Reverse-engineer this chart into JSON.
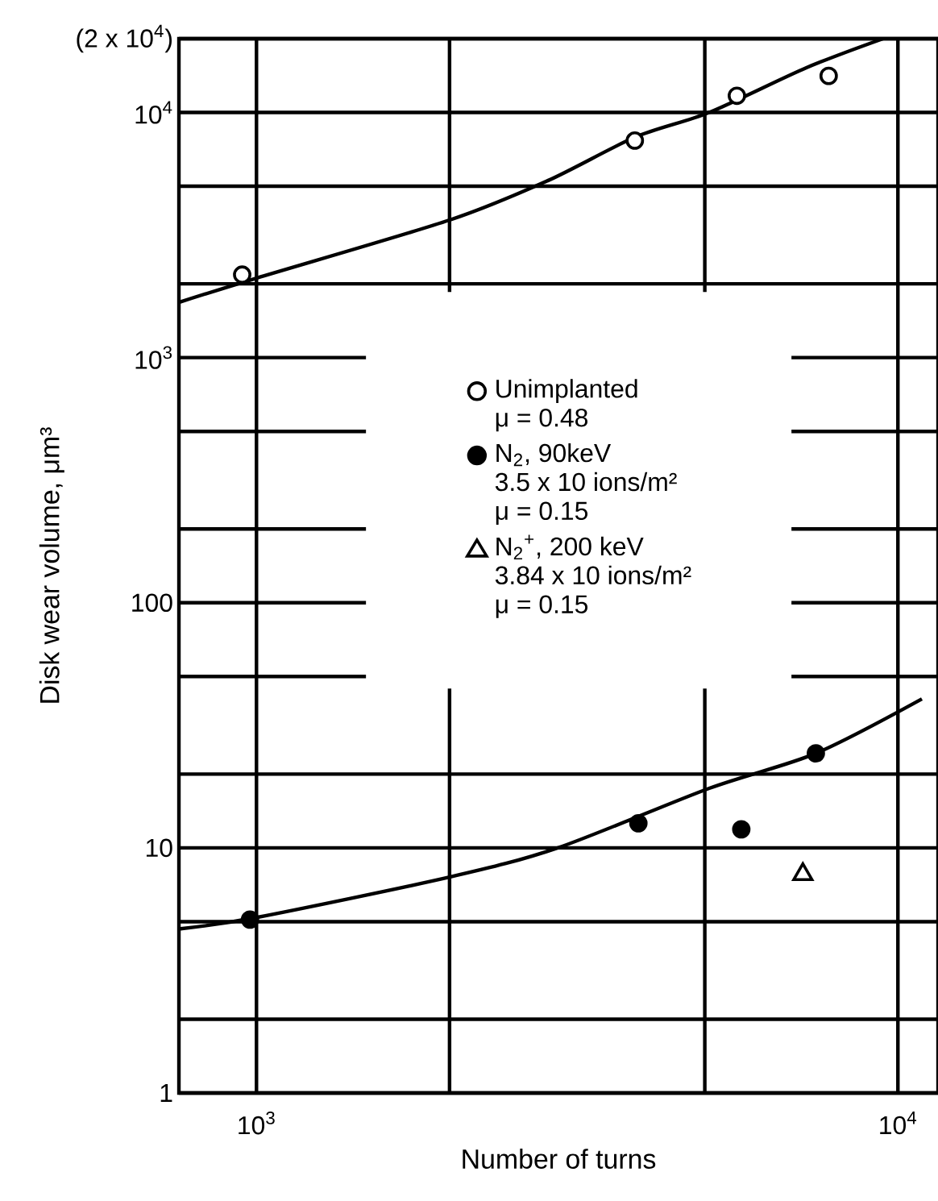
{
  "chart_data": {
    "type": "scatter",
    "xlabel": "Number of turns",
    "ylabel": "Disk wear volume, μm³",
    "log": "xy",
    "grid": true,
    "legend": "top",
    "xlim": [
      757,
      11550
    ],
    "ylim": [
      1,
      20000
    ],
    "xticks": [
      {
        "value": 1000,
        "label": "10$^{3}$"
      },
      {
        "value": 2000,
        "label": null
      },
      {
        "value": 5000,
        "label": null
      },
      {
        "value": 10000,
        "label": "10$^{4}$"
      }
    ],
    "yticks": [
      1,
      {
        "value": 2,
        "label": null
      },
      {
        "value": 5,
        "label": null
      },
      10,
      {
        "value": 20,
        "label": null
      },
      {
        "value": 50,
        "label": null
      },
      100,
      {
        "value": 200,
        "label": null
      },
      {
        "value": 500,
        "label": null
      },
      {
        "value": 1000,
        "label": "10$^{3}$"
      },
      {
        "value": 2000,
        "label": null
      },
      {
        "value": 5000,
        "label": null
      },
      {
        "value": 10000,
        "label": "10$^{4}$"
      },
      {
        "value": 20000,
        "label": "(2 x 10$^{4}$)"
      }
    ],
    "annotations": [
      "μ = 0.48",
      "3.5 x 10  ions/m²",
      "μ = 0.15",
      "3.84 x 10  ions/m²",
      "μ = 0.15"
    ],
    "series": [
      {
        "name": "Unimplanted",
        "marker": "circle",
        "color": "#000000",
        "x": [
          950,
          3890,
          5610,
          7800
        ],
        "values": [
          2180,
          7680,
          11700,
          14100
        ]
      },
      {
        "type": "line",
        "color": "#000000",
        "x": [
          757,
          1000,
          2000,
          2850,
          3890,
          5080,
          7190,
          9480
        ],
        "values": [
          1680,
          2110,
          3640,
          5280,
          7920,
          10000,
          15200,
          20000
        ]
      },
      {
        "name": "N$_{2}$, 90keV",
        "marker": "circle",
        "color": "#000000",
        "x": [
          977,
          3940,
          5700,
          7450
        ],
        "values": [
          5.1,
          12.6,
          11.9,
          24.3
        ]
      },
      {
        "type": "line",
        "color": "#000000",
        "x": [
          757,
          1000,
          2000,
          2950,
          5080,
          7450,
          10900
        ],
        "values": [
          4.67,
          5.2,
          7.6,
          10,
          17.5,
          24.3,
          40.5
        ]
      },
      {
        "name": "N$_{2}$$^{+}$, 200 keV",
        "marker": "triangle",
        "color": "#000000",
        "x": [
          7110
        ],
        "values": [
          7.8
        ]
      }
    ]
  }
}
